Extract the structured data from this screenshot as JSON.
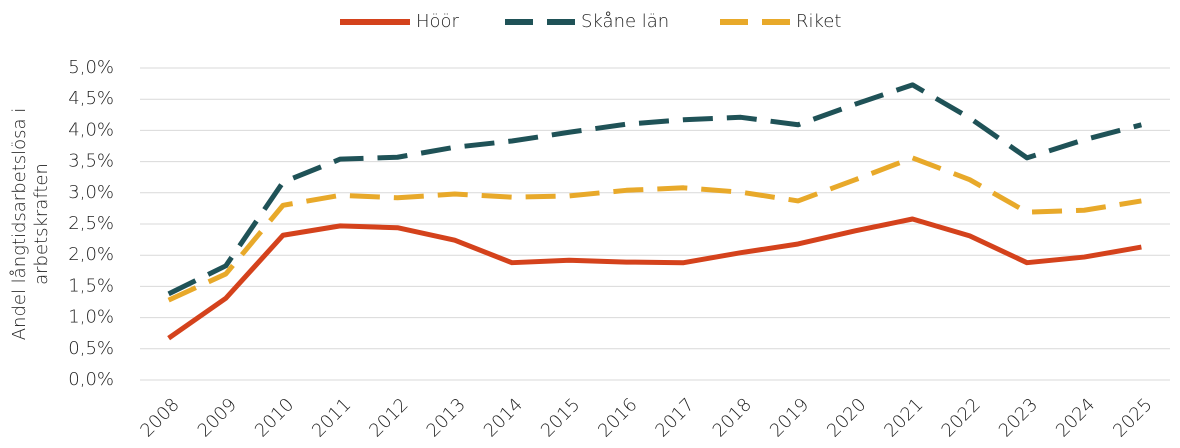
{
  "chart_data": {
    "type": "line",
    "y_label": [
      "Andel långtidsarbetslösa i",
      "arbetskraften"
    ],
    "categories": [
      "2008",
      "2009",
      "2010",
      "2011",
      "2012",
      "2013",
      "2014",
      "2015",
      "2016",
      "2017",
      "2018",
      "2019",
      "2020",
      "2021",
      "2022",
      "2023",
      "2024",
      "2025"
    ],
    "series": [
      {
        "name": "Höör",
        "color": "#d4421c",
        "line_style": "solid",
        "values": [
          0.67,
          1.31,
          2.32,
          2.47,
          2.44,
          2.24,
          1.88,
          1.92,
          1.89,
          1.88,
          2.04,
          2.18,
          2.39,
          2.58,
          2.31,
          1.88,
          1.97,
          2.13
        ]
      },
      {
        "name": "Skåne län",
        "color": "#1f5257",
        "line_style": "dashed",
        "values": [
          1.38,
          1.83,
          3.17,
          3.54,
          3.57,
          3.73,
          3.83,
          3.97,
          4.1,
          4.17,
          4.21,
          4.09,
          4.42,
          4.73,
          4.2,
          3.56,
          3.85,
          4.09
        ]
      },
      {
        "name": "Riket",
        "color": "#e8a92a",
        "line_style": "dashed",
        "values": [
          1.28,
          1.7,
          2.8,
          2.96,
          2.92,
          2.98,
          2.93,
          2.95,
          3.04,
          3.08,
          3.01,
          2.87,
          3.21,
          3.56,
          3.21,
          2.69,
          2.72,
          2.87
        ]
      }
    ],
    "ylim": [
      0,
      5
    ],
    "yticks": [
      {
        "value": 0,
        "label": "0,0%"
      },
      {
        "value": 0.5,
        "label": "0,5%"
      },
      {
        "value": 1,
        "label": "1,0%"
      },
      {
        "value": 1.5,
        "label": "1,5%"
      },
      {
        "value": 2,
        "label": "2,0%"
      },
      {
        "value": 2.5,
        "label": "2,5%"
      },
      {
        "value": 3,
        "label": "3,0%"
      },
      {
        "value": 3.5,
        "label": "3,5%"
      },
      {
        "value": 4,
        "label": "4,0%"
      },
      {
        "value": 4.5,
        "label": "4,5%"
      },
      {
        "value": 5,
        "label": "5,0%"
      }
    ],
    "grid": true,
    "legend": "top"
  }
}
